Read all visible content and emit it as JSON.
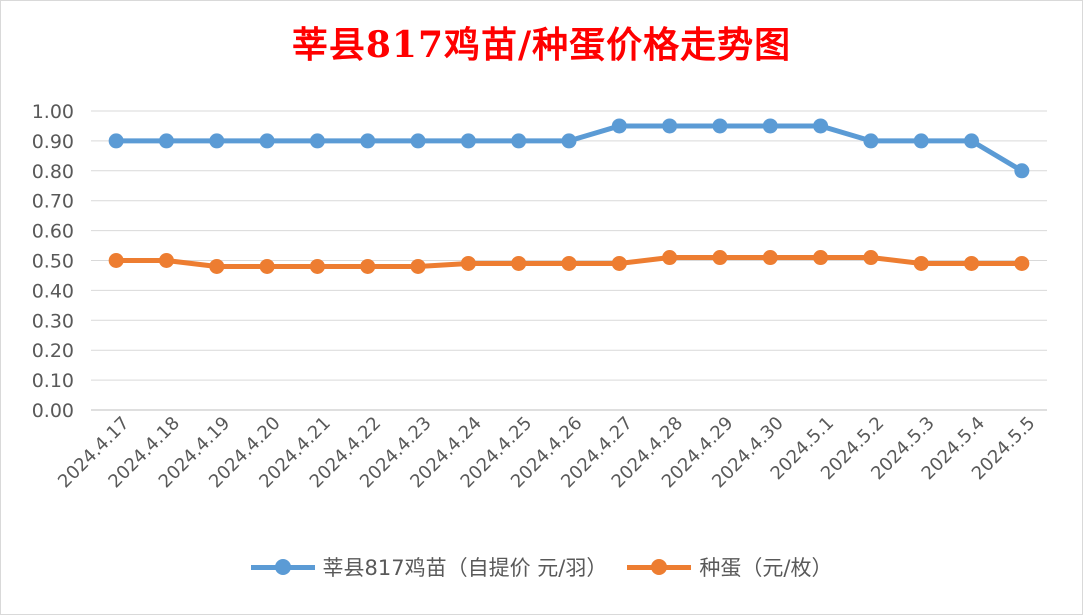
{
  "chart_data": {
    "type": "line",
    "title": "莘县817鸡苗/种蛋价格走势图",
    "categories": [
      "2024.4.17",
      "2024.4.18",
      "2024.4.19",
      "2024.4.20",
      "2024.4.21",
      "2024.4.22",
      "2024.4.23",
      "2024.4.24",
      "2024.4.25",
      "2024.4.26",
      "2024.4.27",
      "2024.4.28",
      "2024.4.29",
      "2024.4.30",
      "2024.5.1",
      "2024.5.2",
      "2024.5.3",
      "2024.5.4",
      "2024.5.5"
    ],
    "series": [
      {
        "name": "莘县817鸡苗（自提价 元/羽）",
        "color": "#5b9bd5",
        "values": [
          0.9,
          0.9,
          0.9,
          0.9,
          0.9,
          0.9,
          0.9,
          0.9,
          0.9,
          0.9,
          0.95,
          0.95,
          0.95,
          0.95,
          0.95,
          0.9,
          0.9,
          0.9,
          0.8
        ]
      },
      {
        "name": "种蛋（元/枚）",
        "color": "#ed7d31",
        "values": [
          0.5,
          0.5,
          0.48,
          0.48,
          0.48,
          0.48,
          0.48,
          0.49,
          0.49,
          0.49,
          0.49,
          0.51,
          0.51,
          0.51,
          0.51,
          0.51,
          0.49,
          0.49,
          0.49
        ]
      }
    ],
    "yticks": [
      "0.00",
      "0.10",
      "0.20",
      "0.30",
      "0.40",
      "0.50",
      "0.60",
      "0.70",
      "0.80",
      "0.90",
      "1.00"
    ],
    "ylim": [
      0,
      1.0
    ],
    "grid": true,
    "legend_position": "bottom",
    "title_color": "#ff0000"
  }
}
